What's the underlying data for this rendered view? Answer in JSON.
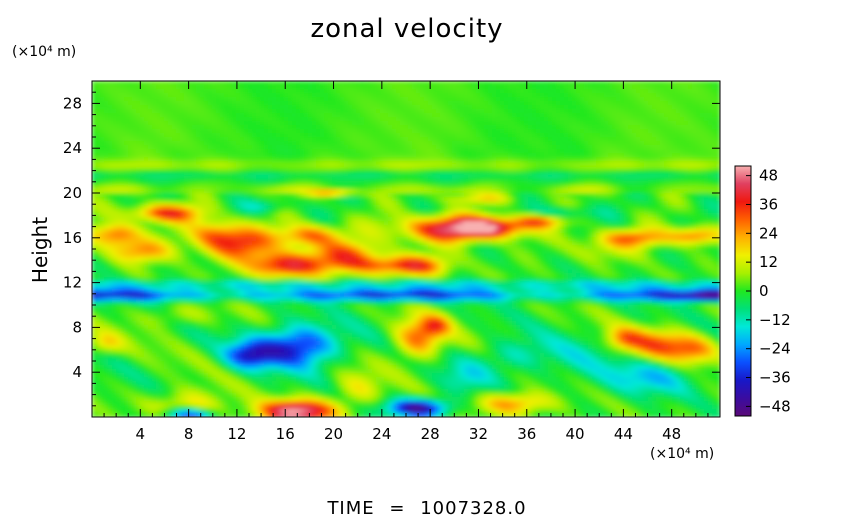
{
  "chart_data": {
    "type": "heatmap",
    "title": "zonal velocity",
    "ylabel": "Height",
    "xlabel": "",
    "y_unit": "(×10⁴ m)",
    "x_unit": "(×10⁴ m)",
    "xlim": [
      0,
      52
    ],
    "ylim": [
      0,
      30
    ],
    "x_ticks": [
      4,
      8,
      12,
      16,
      20,
      24,
      28,
      32,
      36,
      40,
      44,
      48
    ],
    "y_ticks": [
      4,
      8,
      12,
      16,
      20,
      24,
      28
    ],
    "colorbar": {
      "ticks": [
        48,
        36,
        24,
        12,
        0,
        -12,
        -24,
        -36,
        -48
      ],
      "tick_labels": [
        "48",
        "36",
        "24",
        "12",
        "0",
        "−12",
        "−24",
        "−36",
        "−48"
      ],
      "range": [
        -52,
        52
      ],
      "colors": [
        "#5a0a78",
        "#3a0ca0",
        "#1818c8",
        "#0a50ff",
        "#00a8ff",
        "#00e8d8",
        "#00e078",
        "#20e820",
        "#a8f000",
        "#f0f000",
        "#ffb000",
        "#ff6000",
        "#f01810",
        "#e04060",
        "#f8b0b0"
      ]
    },
    "grid": false,
    "legend": "colorbar-right"
  },
  "footer": {
    "label": "TIME",
    "equals": "=",
    "value": "1007328.0"
  }
}
